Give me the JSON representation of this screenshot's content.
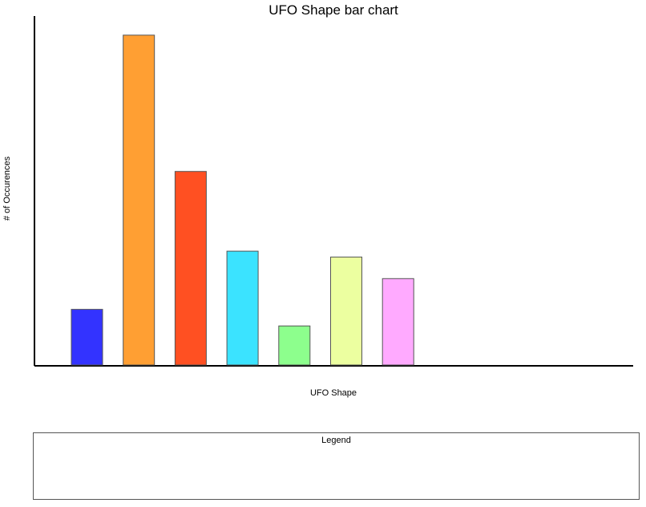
{
  "chart_data": {
    "type": "bar",
    "title": "UFO Shape bar chart",
    "xlabel": "UFO Shape",
    "ylabel": "# of Occurences",
    "categories": [
      "",
      "",
      "",
      "",
      "",
      "",
      ""
    ],
    "values": [
      67,
      397,
      233,
      137,
      47,
      130,
      104
    ],
    "colors": [
      "#3333ff",
      "#ff9f33",
      "#ff5022",
      "#3be3ff",
      "#8dff8d",
      "#ecffa0",
      "#ffaaff"
    ],
    "ylim": [
      0,
      420
    ],
    "grid": false,
    "legend": {
      "title": "Legend",
      "position": "bottom",
      "entries": []
    }
  }
}
